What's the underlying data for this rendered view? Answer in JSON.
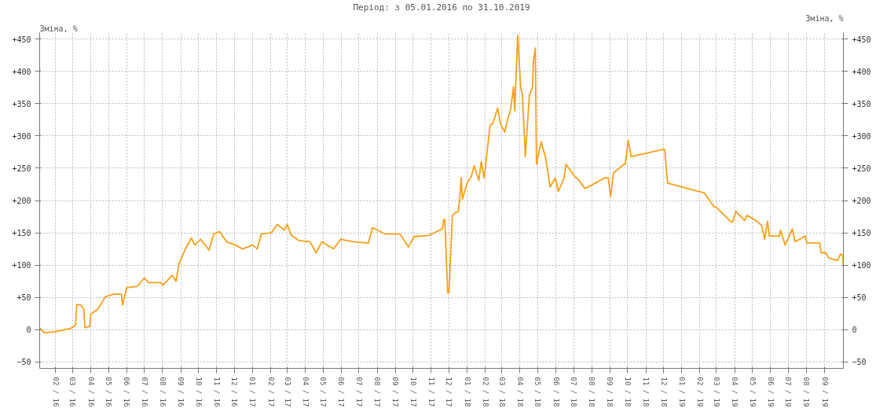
{
  "chart_data": {
    "type": "line",
    "subtitle": "Період: з 05.01.2016 по 31.10.2019",
    "ylabel": "Зміна, %",
    "y2label": "Зміна, %",
    "x": [
      "2016-01-06",
      "2016-01-13",
      "2016-02-02",
      "2016-02-27",
      "2016-03-06",
      "2016-03-08",
      "2016-03-15",
      "2016-03-20",
      "2016-03-22",
      "2016-03-30",
      "2016-04-01",
      "2016-04-13",
      "2016-04-26",
      "2016-05-10",
      "2016-05-23",
      "2016-05-25",
      "2016-06-01",
      "2016-06-19",
      "2016-07-01",
      "2016-07-08",
      "2016-07-28",
      "2016-08-02",
      "2016-08-17",
      "2016-08-24",
      "2016-08-29",
      "2016-09-08",
      "2016-09-19",
      "2016-09-25",
      "2016-10-05",
      "2016-10-19",
      "2016-10-27",
      "2016-11-06",
      "2016-11-18",
      "2016-12-03",
      "2016-12-15",
      "2017-01-01",
      "2017-01-09",
      "2017-01-16",
      "2017-02-02",
      "2017-02-12",
      "2017-02-24",
      "2017-03-01",
      "2017-03-08",
      "2017-03-21",
      "2017-04-09",
      "2017-04-19",
      "2017-04-29",
      "2017-05-19",
      "2017-05-31",
      "2017-06-22",
      "2017-07-17",
      "2017-07-24",
      "2017-08-15",
      "2017-09-09",
      "2017-09-23",
      "2017-10-03",
      "2017-10-28",
      "2017-11-15",
      "2017-11-20",
      "2017-11-22",
      "2017-11-24",
      "2017-11-29",
      "2017-12-01",
      "2017-12-07",
      "2017-12-12",
      "2017-12-17",
      "2017-12-19",
      "2017-12-22",
      "2017-12-24",
      "2018-01-01",
      "2018-01-08",
      "2018-01-13",
      "2018-01-21",
      "2018-01-25",
      "2018-01-30",
      "2018-02-09",
      "2018-02-14",
      "2018-02-22",
      "2018-02-27",
      "2018-03-06",
      "2018-03-11",
      "2018-03-16",
      "2018-03-21",
      "2018-03-23",
      "2018-03-28",
      "2018-04-02",
      "2018-04-05",
      "2018-04-10",
      "2018-04-17",
      "2018-04-22",
      "2018-04-24",
      "2018-04-27",
      "2018-04-29",
      "2018-05-07",
      "2018-05-14",
      "2018-05-17",
      "2018-05-22",
      "2018-05-31",
      "2018-06-05",
      "2018-06-15",
      "2018-06-18",
      "2018-07-05",
      "2018-07-07",
      "2018-07-20",
      "2018-07-22",
      "2018-08-23",
      "2018-08-29",
      "2018-09-02",
      "2018-09-07",
      "2018-09-25",
      "2018-09-27",
      "2018-10-02",
      "2018-10-07",
      "2018-11-30",
      "2018-12-03",
      "2018-12-08",
      "2019-02-07",
      "2019-02-08",
      "2019-02-25",
      "2019-02-28",
      "2019-03-26",
      "2019-03-29",
      "2019-04-03",
      "2019-04-18",
      "2019-04-22",
      "2019-05-07",
      "2019-05-10",
      "2019-05-17",
      "2019-05-22",
      "2019-05-27",
      "2019-05-30",
      "2019-06-16",
      "2019-06-18",
      "2019-06-26",
      "2019-07-03",
      "2019-07-08",
      "2019-07-13",
      "2019-07-30",
      "2019-08-02",
      "2019-08-24",
      "2019-08-26",
      "2019-09-03",
      "2019-09-08",
      "2019-09-23",
      "2019-09-28",
      "2019-10-02",
      "2019-10-03"
    ],
    "series": [
      {
        "color": "#f5a01a",
        "values": [
          2,
          -5,
          -3,
          2,
          7,
          39,
          38,
          32,
          3,
          5,
          24,
          32,
          51,
          55,
          55,
          38,
          65,
          67,
          80,
          73,
          73,
          69,
          84,
          75,
          102,
          123,
          142,
          131,
          140,
          123,
          148,
          152,
          136,
          131,
          125,
          131,
          125,
          148,
          150,
          163,
          154,
          163,
          146,
          138,
          136,
          119,
          136,
          125,
          140,
          136,
          134,
          158,
          148,
          148,
          128,
          144,
          146,
          154,
          156,
          169,
          171,
          57,
          57,
          177,
          181,
          183,
          198,
          235,
          202,
          227,
          237,
          254,
          231,
          260,
          235,
          316,
          320,
          343,
          318,
          306,
          326,
          341,
          376,
          339,
          456,
          376,
          364,
          268,
          364,
          374,
          418,
          436,
          256,
          291,
          268,
          252,
          221,
          235,
          214,
          235,
          256,
          235,
          235,
          219,
          219,
          235,
          235,
          206,
          243,
          256,
          256,
          293,
          268,
          279,
          279,
          227,
          212,
          212,
          190,
          190,
          167,
          167,
          183,
          169,
          177,
          169,
          167,
          161,
          140,
          168,
          145,
          145,
          154,
          131,
          145,
          156,
          136,
          145,
          134,
          134,
          119,
          119,
          111,
          107,
          117,
          115,
          98
        ]
      }
    ],
    "xlim": [
      "2016-01-05",
      "2019-10-03"
    ],
    "xticks": [
      {
        "value": "2016-02-01",
        "label": "02 / 16"
      },
      {
        "value": "2016-03-01",
        "label": "03 / 16"
      },
      {
        "value": "2016-04-01",
        "label": "04 / 16"
      },
      {
        "value": "2016-05-01",
        "label": "05 / 16"
      },
      {
        "value": "2016-06-01",
        "label": "06 / 16"
      },
      {
        "value": "2016-07-01",
        "label": "07 / 16"
      },
      {
        "value": "2016-08-01",
        "label": "08 / 16"
      },
      {
        "value": "2016-09-01",
        "label": "09 / 16"
      },
      {
        "value": "2016-10-01",
        "label": "10 / 16"
      },
      {
        "value": "2016-11-01",
        "label": "11 / 16"
      },
      {
        "value": "2016-12-01",
        "label": "12 / 16"
      },
      {
        "value": "2017-01-01",
        "label": "01 / 17"
      },
      {
        "value": "2017-02-01",
        "label": "02 / 17"
      },
      {
        "value": "2017-03-01",
        "label": "03 / 17"
      },
      {
        "value": "2017-04-01",
        "label": "04 / 17"
      },
      {
        "value": "2017-05-01",
        "label": "05 / 17"
      },
      {
        "value": "2017-06-01",
        "label": "06 / 17"
      },
      {
        "value": "2017-07-01",
        "label": "07 / 17"
      },
      {
        "value": "2017-08-01",
        "label": "08 / 17"
      },
      {
        "value": "2017-09-01",
        "label": "09 / 17"
      },
      {
        "value": "2017-10-01",
        "label": "10 / 17"
      },
      {
        "value": "2017-11-01",
        "label": "11 / 17"
      },
      {
        "value": "2017-12-01",
        "label": "12 / 17"
      },
      {
        "value": "2018-01-01",
        "label": "01 / 18"
      },
      {
        "value": "2018-02-01",
        "label": "02 / 18"
      },
      {
        "value": "2018-03-01",
        "label": "03 / 18"
      },
      {
        "value": "2018-04-01",
        "label": "04 / 18"
      },
      {
        "value": "2018-05-01",
        "label": "05 / 18"
      },
      {
        "value": "2018-06-01",
        "label": "06 / 18"
      },
      {
        "value": "2018-07-01",
        "label": "07 / 18"
      },
      {
        "value": "2018-08-01",
        "label": "08 / 18"
      },
      {
        "value": "2018-09-01",
        "label": "09 / 18"
      },
      {
        "value": "2018-10-01",
        "label": "10 / 18"
      },
      {
        "value": "2018-11-01",
        "label": "11 / 18"
      },
      {
        "value": "2018-12-01",
        "label": "12 / 18"
      },
      {
        "value": "2019-01-01",
        "label": "01 / 19"
      },
      {
        "value": "2019-02-01",
        "label": "02 / 19"
      },
      {
        "value": "2019-03-01",
        "label": "03 / 19"
      },
      {
        "value": "2019-04-01",
        "label": "04 / 19"
      },
      {
        "value": "2019-05-01",
        "label": "05 / 19"
      },
      {
        "value": "2019-06-01",
        "label": "06 / 19"
      },
      {
        "value": "2019-07-01",
        "label": "07 / 19"
      },
      {
        "value": "2019-08-01",
        "label": "08 / 19"
      },
      {
        "value": "2019-09-01",
        "label": "09 / 19"
      }
    ],
    "ylim": [
      -60,
      460
    ],
    "yticks": [
      {
        "value": -50,
        "label": "−50"
      },
      0,
      {
        "value": 50,
        "label": "+50"
      },
      {
        "value": 100,
        "label": "+100"
      },
      {
        "value": 150,
        "label": "+150"
      },
      {
        "value": 200,
        "label": "+200"
      },
      {
        "value": 250,
        "label": "+250"
      },
      {
        "value": 300,
        "label": "+300"
      },
      {
        "value": 350,
        "label": "+350"
      },
      {
        "value": 400,
        "label": "+400"
      },
      {
        "value": 450,
        "label": "+450"
      }
    ],
    "y2lim": [
      -60,
      460
    ],
    "y2ticks": [
      {
        "value": -50,
        "label": "−50"
      },
      0,
      {
        "value": 50,
        "label": "+50"
      },
      {
        "value": 100,
        "label": "+100"
      },
      {
        "value": 150,
        "label": "+150"
      },
      {
        "value": 200,
        "label": "+200"
      },
      {
        "value": 250,
        "label": "+250"
      },
      {
        "value": 300,
        "label": "+300"
      },
      {
        "value": 350,
        "label": "+350"
      },
      {
        "value": 400,
        "label": "+400"
      },
      {
        "value": 450,
        "label": "+450"
      }
    ],
    "grid": true,
    "marker": "none",
    "line_style": "solid"
  }
}
